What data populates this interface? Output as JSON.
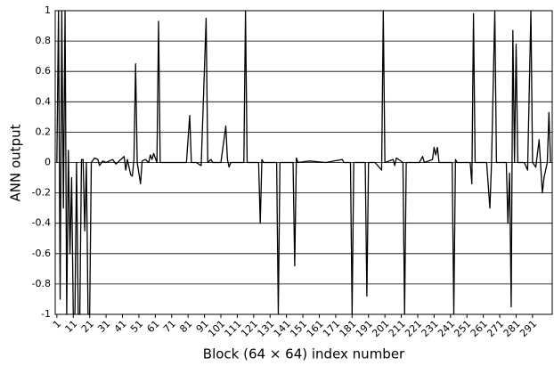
{
  "chart_data": {
    "type": "line",
    "xlabel": "Block (64 × 64) index number",
    "ylabel": "ANN output",
    "xlim": [
      0,
      303
    ],
    "ylim": [
      -1,
      1
    ],
    "xticks": [
      1,
      11,
      21,
      31,
      41,
      51,
      61,
      71,
      81,
      91,
      101,
      111,
      121,
      131,
      141,
      151,
      161,
      171,
      181,
      191,
      201,
      211,
      221,
      231,
      241,
      251,
      261,
      271,
      281,
      291
    ],
    "yticks": [
      -1,
      -0.8,
      -0.6,
      -0.4,
      -0.2,
      0,
      0.2,
      0.4,
      0.6,
      0.8,
      1
    ],
    "grid": true,
    "series": [
      {
        "color": "#000000",
        "x": [
          1,
          2,
          3,
          4,
          5,
          6,
          7,
          8,
          9,
          10,
          11,
          12,
          13,
          14,
          15,
          16,
          17,
          18,
          19,
          20,
          21,
          22,
          24,
          26,
          27,
          29,
          31,
          35,
          37,
          40,
          42,
          43,
          44,
          46,
          47,
          48,
          49,
          50,
          52,
          53,
          55,
          57,
          58,
          59,
          60,
          62,
          63,
          64,
          70,
          80,
          82,
          83,
          86,
          89,
          92,
          93,
          95,
          96,
          101,
          104,
          105,
          106,
          107,
          115,
          116,
          117,
          124,
          125,
          126,
          127,
          135,
          136,
          137,
          145,
          146,
          147,
          148,
          155,
          165,
          175,
          176,
          180,
          181,
          182,
          189,
          190,
          191,
          195,
          199,
          200,
          201,
          206,
          207,
          208,
          212,
          213,
          214,
          222,
          224,
          225,
          230,
          231,
          232,
          233,
          234,
          242,
          243,
          244,
          245,
          253,
          254,
          255,
          256,
          263,
          265,
          266,
          268,
          269,
          275,
          276,
          277,
          278,
          279,
          280,
          281,
          282,
          286,
          288,
          290,
          291,
          293,
          295,
          297,
          298,
          300,
          301,
          302
        ],
        "values": [
          0,
          1,
          -0.9,
          1,
          -0.3,
          1,
          -1,
          0.08,
          -0.6,
          -0.1,
          -1,
          -1,
          0,
          -1,
          -1,
          0.02,
          0.02,
          -0.45,
          0,
          -1,
          -1,
          0,
          0.03,
          0.02,
          -0.02,
          0.01,
          0,
          0.02,
          -0.01,
          0.02,
          0.04,
          -0.05,
          0.02,
          -0.08,
          -0.09,
          0.02,
          0.65,
          0,
          -0.14,
          0.01,
          0.02,
          0,
          0.05,
          0.02,
          0.06,
          0,
          0.93,
          0,
          0,
          0,
          0.31,
          0,
          0,
          -0.02,
          0.95,
          0,
          0.02,
          0,
          0,
          0.24,
          0.02,
          -0.03,
          0,
          0,
          1,
          0,
          0,
          -0.4,
          0.02,
          0,
          0,
          -1,
          0,
          0,
          -0.68,
          0.03,
          0,
          0.01,
          0,
          0.02,
          0,
          0,
          -1,
          0,
          0,
          -0.88,
          0,
          0,
          -0.05,
          1,
          0,
          0.02,
          -0.02,
          0.03,
          0,
          -1,
          0,
          0,
          0.04,
          0,
          0.02,
          0.1,
          0.05,
          0.1,
          0,
          0,
          -1,
          0.02,
          0,
          0,
          -0.14,
          0.98,
          0,
          0,
          -0.3,
          0,
          1,
          0,
          0,
          -0.4,
          -0.07,
          -0.95,
          0.87,
          0,
          0.78,
          0,
          0,
          -0.05,
          1,
          0,
          -0.03,
          0.15,
          -0.2,
          -0.1,
          0,
          0.33,
          0
        ]
      }
    ]
  }
}
